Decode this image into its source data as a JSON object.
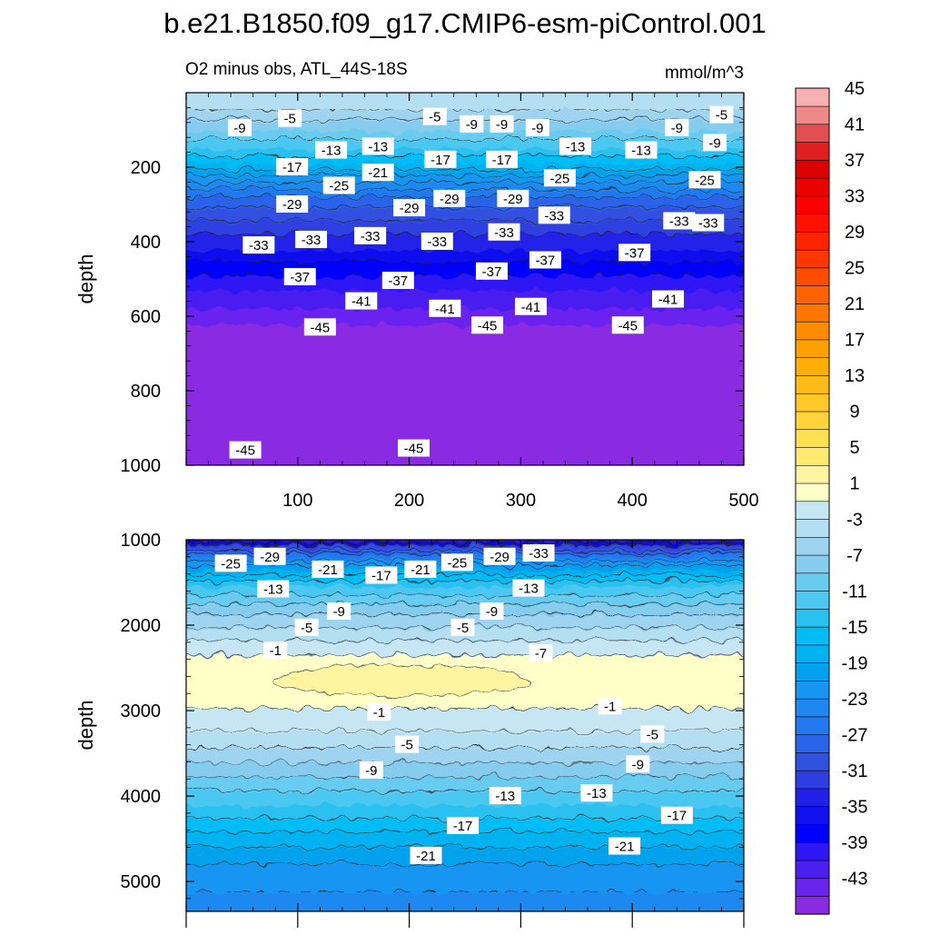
{
  "figure": {
    "title": "b.e21.B1850.f09_g17.CMIP6-esm-piControl.001",
    "subtitle_left": "O2 minus obs, ATL_44S-18S",
    "subtitle_right": "mmol/m^3"
  },
  "chart_data": [
    {
      "type": "heatmap",
      "panel": "upper",
      "ylabel": "depth",
      "xlim": [
        0,
        500
      ],
      "ylim": [
        1000,
        0
      ],
      "x_ticks": [
        100,
        200,
        300,
        400,
        500
      ],
      "y_ticks": [
        200,
        400,
        600,
        800,
        1000
      ],
      "profile": [
        {
          "depth": 0,
          "value": -3
        },
        {
          "depth": 30,
          "value": -4
        },
        {
          "depth": 60,
          "value": -6
        },
        {
          "depth": 100,
          "value": -9
        },
        {
          "depth": 150,
          "value": -13
        },
        {
          "depth": 190,
          "value": -17
        },
        {
          "depth": 230,
          "value": -22
        },
        {
          "depth": 290,
          "value": -28
        },
        {
          "depth": 360,
          "value": -32
        },
        {
          "depth": 420,
          "value": -35
        },
        {
          "depth": 470,
          "value": -38
        },
        {
          "depth": 530,
          "value": -41
        },
        {
          "depth": 580,
          "value": -43
        },
        {
          "depth": 620,
          "value": -45
        },
        {
          "depth": 1000,
          "value": -46
        }
      ],
      "contour_labels": [
        {
          "text": "-9",
          "x": 48,
          "depth": 95
        },
        {
          "text": "-5",
          "x": 93,
          "depth": 70
        },
        {
          "text": "-5",
          "x": 223,
          "depth": 65
        },
        {
          "text": "-9",
          "x": 256,
          "depth": 85
        },
        {
          "text": "-9",
          "x": 283,
          "depth": 85
        },
        {
          "text": "-9",
          "x": 315,
          "depth": 95
        },
        {
          "text": "-9",
          "x": 440,
          "depth": 95
        },
        {
          "text": "-5",
          "x": 480,
          "depth": 60
        },
        {
          "text": "-9",
          "x": 474,
          "depth": 135
        },
        {
          "text": "-13",
          "x": 130,
          "depth": 155
        },
        {
          "text": "-13",
          "x": 172,
          "depth": 145
        },
        {
          "text": "-13",
          "x": 349,
          "depth": 145
        },
        {
          "text": "-13",
          "x": 408,
          "depth": 155
        },
        {
          "text": "-17",
          "x": 95,
          "depth": 200
        },
        {
          "text": "-17",
          "x": 228,
          "depth": 180
        },
        {
          "text": "-17",
          "x": 283,
          "depth": 180
        },
        {
          "text": "-21",
          "x": 172,
          "depth": 215
        },
        {
          "text": "-25",
          "x": 137,
          "depth": 250
        },
        {
          "text": "-25",
          "x": 335,
          "depth": 230
        },
        {
          "text": "-25",
          "x": 465,
          "depth": 235
        },
        {
          "text": "-29",
          "x": 95,
          "depth": 300
        },
        {
          "text": "-29",
          "x": 200,
          "depth": 310
        },
        {
          "text": "-29",
          "x": 236,
          "depth": 285
        },
        {
          "text": "-29",
          "x": 293,
          "depth": 285
        },
        {
          "text": "-33",
          "x": 330,
          "depth": 330
        },
        {
          "text": "-33",
          "x": 442,
          "depth": 345
        },
        {
          "text": "-33",
          "x": 468,
          "depth": 350
        },
        {
          "text": "-33",
          "x": 285,
          "depth": 375
        },
        {
          "text": "-33",
          "x": 165,
          "depth": 385
        },
        {
          "text": "-33",
          "x": 112,
          "depth": 395
        },
        {
          "text": "-33",
          "x": 225,
          "depth": 400
        },
        {
          "text": "-33",
          "x": 65,
          "depth": 410
        },
        {
          "text": "-37",
          "x": 322,
          "depth": 450
        },
        {
          "text": "-37",
          "x": 402,
          "depth": 430
        },
        {
          "text": "-37",
          "x": 274,
          "depth": 480
        },
        {
          "text": "-37",
          "x": 102,
          "depth": 495
        },
        {
          "text": "-37",
          "x": 190,
          "depth": 505
        },
        {
          "text": "-41",
          "x": 157,
          "depth": 560
        },
        {
          "text": "-41",
          "x": 232,
          "depth": 580
        },
        {
          "text": "-41",
          "x": 309,
          "depth": 575
        },
        {
          "text": "-41",
          "x": 432,
          "depth": 555
        },
        {
          "text": "-45",
          "x": 120,
          "depth": 630
        },
        {
          "text": "-45",
          "x": 270,
          "depth": 625
        },
        {
          "text": "-45",
          "x": 396,
          "depth": 625
        },
        {
          "text": "-45",
          "x": 53,
          "depth": 960
        },
        {
          "text": "-45",
          "x": 204,
          "depth": 955
        }
      ]
    },
    {
      "type": "heatmap",
      "panel": "lower",
      "ylabel": "depth",
      "xlim": [
        0,
        500
      ],
      "ylim": [
        5350,
        1000
      ],
      "y_ticks": [
        1000,
        2000,
        3000,
        4000,
        5000
      ],
      "profile": [
        {
          "depth": 1000,
          "value": -40
        },
        {
          "depth": 1080,
          "value": -31
        },
        {
          "depth": 1200,
          "value": -25
        },
        {
          "depth": 1350,
          "value": -19
        },
        {
          "depth": 1550,
          "value": -13
        },
        {
          "depth": 1800,
          "value": -8
        },
        {
          "depth": 2100,
          "value": -4
        },
        {
          "depth": 2300,
          "value": -1.5
        },
        {
          "depth": 2450,
          "value": 0
        },
        {
          "depth": 2650,
          "value": 0.5
        },
        {
          "depth": 2850,
          "value": 0
        },
        {
          "depth": 3000,
          "value": -1.2
        },
        {
          "depth": 3300,
          "value": -3.5
        },
        {
          "depth": 3700,
          "value": -8
        },
        {
          "depth": 4100,
          "value": -13
        },
        {
          "depth": 4500,
          "value": -18
        },
        {
          "depth": 4900,
          "value": -22
        },
        {
          "depth": 5350,
          "value": -24
        }
      ],
      "positive_patch": {
        "x_range": [
          80,
          310
        ],
        "depth_center": 2650,
        "value": 2
      },
      "contour_labels": [
        {
          "text": "-25",
          "x": 40,
          "depth": 1280
        },
        {
          "text": "-29",
          "x": 75,
          "depth": 1200
        },
        {
          "text": "-21",
          "x": 127,
          "depth": 1350
        },
        {
          "text": "-17",
          "x": 175,
          "depth": 1420
        },
        {
          "text": "-21",
          "x": 210,
          "depth": 1350
        },
        {
          "text": "-25",
          "x": 243,
          "depth": 1270
        },
        {
          "text": "-29",
          "x": 281,
          "depth": 1200
        },
        {
          "text": "-33",
          "x": 316,
          "depth": 1160
        },
        {
          "text": "-13",
          "x": 78,
          "depth": 1580
        },
        {
          "text": "-13",
          "x": 307,
          "depth": 1570
        },
        {
          "text": "-9",
          "x": 137,
          "depth": 1840
        },
        {
          "text": "-9",
          "x": 274,
          "depth": 1840
        },
        {
          "text": "-5",
          "x": 108,
          "depth": 2030
        },
        {
          "text": "-5",
          "x": 248,
          "depth": 2030
        },
        {
          "text": "-1",
          "x": 80,
          "depth": 2300
        },
        {
          "text": "-7",
          "x": 318,
          "depth": 2330
        },
        {
          "text": "-1",
          "x": 173,
          "depth": 3020
        },
        {
          "text": "-1",
          "x": 380,
          "depth": 2950
        },
        {
          "text": "-5",
          "x": 198,
          "depth": 3400
        },
        {
          "text": "-5",
          "x": 418,
          "depth": 3280
        },
        {
          "text": "-9",
          "x": 166,
          "depth": 3700
        },
        {
          "text": "-9",
          "x": 405,
          "depth": 3630
        },
        {
          "text": "-13",
          "x": 286,
          "depth": 4000
        },
        {
          "text": "-13",
          "x": 368,
          "depth": 3970
        },
        {
          "text": "-17",
          "x": 248,
          "depth": 4350
        },
        {
          "text": "-17",
          "x": 440,
          "depth": 4230
        },
        {
          "text": "-21",
          "x": 215,
          "depth": 4700
        },
        {
          "text": "-21",
          "x": 393,
          "depth": 4590
        }
      ]
    }
  ],
  "colorbar": {
    "levels": [
      -45,
      -43,
      -41,
      -39,
      -37,
      -35,
      -33,
      -31,
      -29,
      -27,
      -25,
      -23,
      -21,
      -19,
      -17,
      -15,
      -13,
      -11,
      -9,
      -7,
      -5,
      -3,
      -1,
      1,
      3,
      5,
      7,
      9,
      11,
      13,
      15,
      17,
      19,
      21,
      23,
      25,
      27,
      29,
      31,
      33,
      35,
      37,
      39,
      41,
      43,
      45
    ],
    "tick_labels": [
      "-43",
      "-39",
      "-35",
      "-31",
      "-27",
      "-23",
      "-19",
      "-15",
      "-11",
      "-7",
      "-3",
      "1",
      "5",
      "9",
      "13",
      "17",
      "21",
      "25",
      "29",
      "33",
      "37",
      "41",
      "45"
    ],
    "colors": [
      "#8a2be2",
      "#6a24f0",
      "#4a1ff0",
      "#2e16f5",
      "#0000ff",
      "#1010f0",
      "#2020e8",
      "#2d3fe0",
      "#3050e0",
      "#2a64ea",
      "#2378ee",
      "#1e88f0",
      "#1496f2",
      "#00a2ee",
      "#00b2f0",
      "#00bdf5",
      "#2ac0f0",
      "#4cc8f2",
      "#68cbf0",
      "#86ccee",
      "#9ed4f0",
      "#b4dff2",
      "#c7e6f4",
      "#ffffc8",
      "#fff4a0",
      "#ffea70",
      "#ffe050",
      "#ffd43a",
      "#ffc828",
      "#ffbc18",
      "#ffae08",
      "#ffa000",
      "#ff8c00",
      "#ff7700",
      "#ff6200",
      "#ff4c00",
      "#ff3800",
      "#ff2400",
      "#ff1000",
      "#fe0000",
      "#ef0000",
      "#dd0000",
      "#e02020",
      "#e05050",
      "#f08888",
      "#f8b0b0"
    ]
  }
}
